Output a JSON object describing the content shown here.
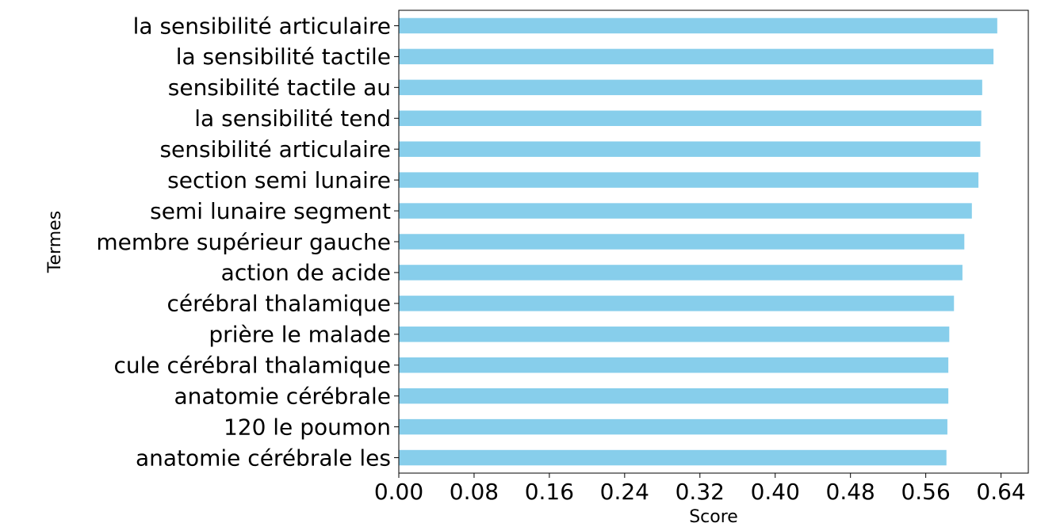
{
  "chart_data": {
    "type": "bar",
    "orientation": "horizontal",
    "categories": [
      "la sensibilité articulaire",
      "la sensibilité tactile",
      "sensibilité tactile au",
      "la sensibilité tend",
      "sensibilité articulaire",
      "section semi lunaire",
      "semi lunaire segment",
      "membre supérieur gauche",
      "action de acide",
      "cérébral thalamique",
      "prière le malade",
      "cule cérébral thalamique",
      "anatomie cérébrale",
      "120 le poumon",
      "anatomie cérébrale les"
    ],
    "values": [
      0.636,
      0.632,
      0.62,
      0.619,
      0.618,
      0.616,
      0.609,
      0.601,
      0.599,
      0.59,
      0.585,
      0.584,
      0.584,
      0.583,
      0.582
    ],
    "xlabel": "Score",
    "ylabel": "Termes",
    "xlim": [
      0,
      0.669
    ],
    "xticks": [
      "0.00",
      "0.08",
      "0.16",
      "0.24",
      "0.32",
      "0.40",
      "0.48",
      "0.56",
      "0.64"
    ],
    "xtick_values": [
      0,
      0.08,
      0.16,
      0.24,
      0.32,
      0.4,
      0.48,
      0.56,
      0.64
    ],
    "bar_color": "#87CEEB",
    "grid": false,
    "legend": false
  }
}
